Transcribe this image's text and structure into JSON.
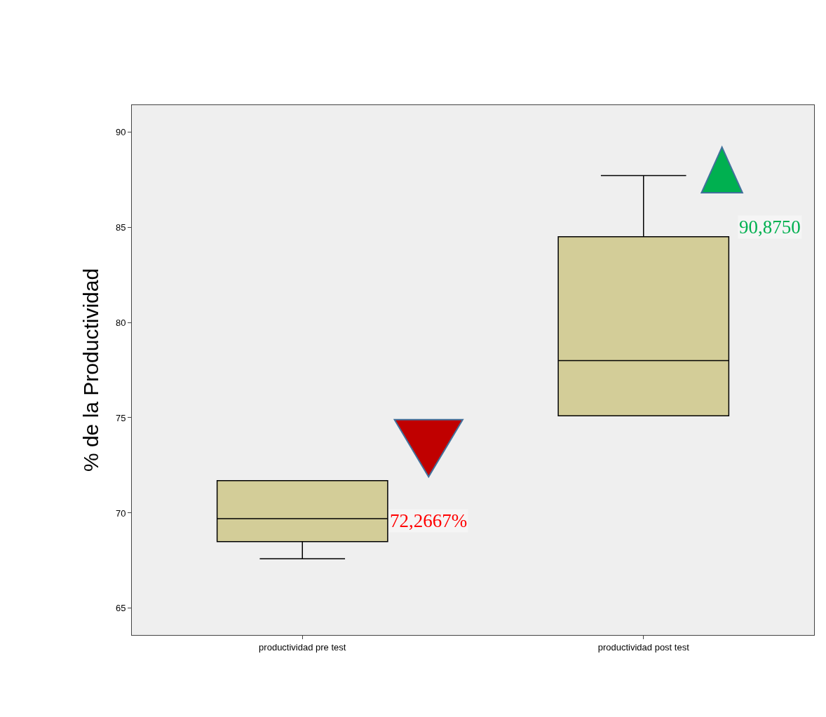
{
  "chart_data": {
    "type": "box",
    "ylabel": "% de la Productividad",
    "categories": [
      "productividad pre test",
      "productividad post test"
    ],
    "series": [
      {
        "color": "#d3cd98",
        "boxes": [
          {
            "low": 67.6,
            "q1": 68.5,
            "median": 69.7,
            "q3": 71.7,
            "high": 71.7
          },
          {
            "low": 75.1,
            "q1": 75.1,
            "median": 78.0,
            "q3": 84.5,
            "high": 87.7
          }
        ]
      }
    ],
    "ylim": [
      63.6,
      91.4
    ],
    "yticks": [
      65,
      70,
      75,
      80,
      85,
      90
    ],
    "grid": false,
    "legend": false,
    "annotations": [
      "72,2667%",
      "90,8750"
    ]
  }
}
